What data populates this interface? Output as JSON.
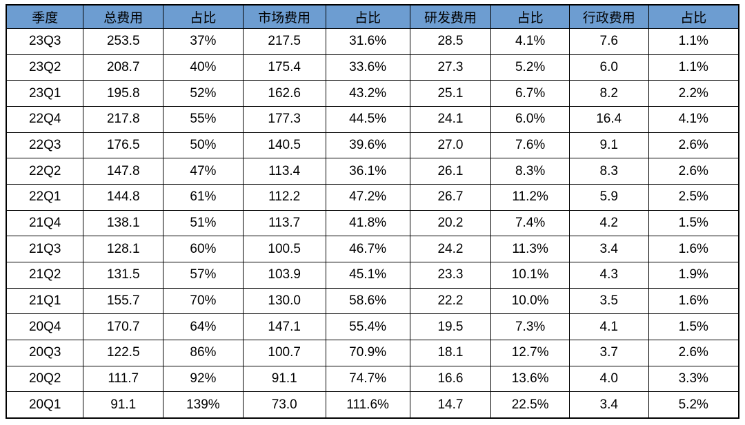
{
  "chart_data": {
    "type": "table",
    "columns": [
      "季度",
      "总费用",
      "占比",
      "市场费用",
      "占比",
      "研发费用",
      "占比",
      "行政费用",
      "占比"
    ],
    "rows": [
      [
        "23Q3",
        "253.5",
        "37%",
        "217.5",
        "31.6%",
        "28.5",
        "4.1%",
        "7.6",
        "1.1%"
      ],
      [
        "23Q2",
        "208.7",
        "40%",
        "175.4",
        "33.6%",
        "27.3",
        "5.2%",
        "6.0",
        "1.1%"
      ],
      [
        "23Q1",
        "195.8",
        "52%",
        "162.6",
        "43.2%",
        "25.1",
        "6.7%",
        "8.2",
        "2.2%"
      ],
      [
        "22Q4",
        "217.8",
        "55%",
        "177.3",
        "44.5%",
        "24.1",
        "6.0%",
        "16.4",
        "4.1%"
      ],
      [
        "22Q3",
        "176.5",
        "50%",
        "140.5",
        "39.6%",
        "27.0",
        "7.6%",
        "9.1",
        "2.6%"
      ],
      [
        "22Q2",
        "147.8",
        "47%",
        "113.4",
        "36.1%",
        "26.1",
        "8.3%",
        "8.3",
        "2.6%"
      ],
      [
        "22Q1",
        "144.8",
        "61%",
        "112.2",
        "47.2%",
        "26.7",
        "11.2%",
        "5.9",
        "2.5%"
      ],
      [
        "21Q4",
        "138.1",
        "51%",
        "113.7",
        "41.8%",
        "20.2",
        "7.4%",
        "4.2",
        "1.5%"
      ],
      [
        "21Q3",
        "128.1",
        "60%",
        "100.5",
        "46.7%",
        "24.2",
        "11.3%",
        "3.4",
        "1.6%"
      ],
      [
        "21Q2",
        "131.5",
        "57%",
        "103.9",
        "45.1%",
        "23.3",
        "10.1%",
        "4.3",
        "1.9%"
      ],
      [
        "21Q1",
        "155.7",
        "70%",
        "130.0",
        "58.6%",
        "22.2",
        "10.0%",
        "3.5",
        "1.6%"
      ],
      [
        "20Q4",
        "170.7",
        "64%",
        "147.1",
        "55.4%",
        "19.5",
        "7.3%",
        "4.1",
        "1.5%"
      ],
      [
        "20Q3",
        "122.5",
        "86%",
        "100.7",
        "70.9%",
        "18.1",
        "12.7%",
        "3.7",
        "2.6%"
      ],
      [
        "20Q2",
        "111.7",
        "92%",
        "91.1",
        "74.7%",
        "16.6",
        "13.6%",
        "4.0",
        "3.3%"
      ],
      [
        "20Q1",
        "91.1",
        "139%",
        "73.0",
        "111.6%",
        "14.7",
        "22.5%",
        "3.4",
        "5.2%"
      ]
    ],
    "title": "",
    "layout": {
      "grid": true,
      "header_row": true,
      "align": "center"
    }
  },
  "colors": {
    "header_bg": "#6D9DD1",
    "header_text": "#000000",
    "cell_bg": "#FFFFFF",
    "border": "#000000",
    "text": "#000000",
    "page_bg": "#FFFFFF"
  }
}
